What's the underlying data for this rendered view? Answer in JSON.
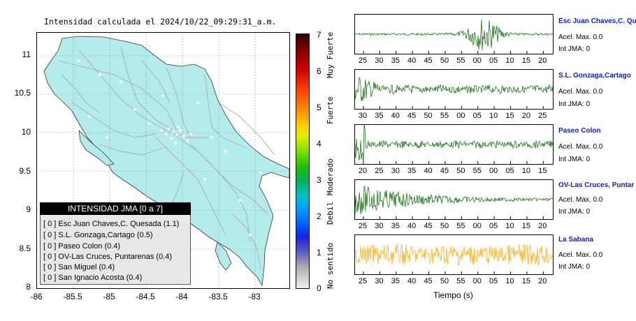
{
  "header": {
    "title": "Intensidad calculada el 2024/10/22_09:29:31_a.m."
  },
  "map": {
    "yticks": [
      "11",
      "10.5",
      "10",
      "9.5",
      "9",
      "8.5",
      "8"
    ],
    "xticks": [
      "-86",
      "-85.5",
      "-85",
      "-84.5",
      "-84",
      "-83.5",
      "-83"
    ],
    "land_color": "#b4ecec",
    "road_color": "#aaaaaa"
  },
  "legend": {
    "title": "INTENSIDAD JMA [0 a 7]",
    "items": [
      "[ 0 ]  Esc Juan Chaves,C. Quesada (1.1)",
      "[ 0 ]  S.L. Gonzaga,Cartago (0.5)",
      "[ 0 ]  Paseo Colon (0.4)",
      "[ 0 ]  OV-Las Cruces, Puntarenas (0.4)",
      "[ 0 ]  San Miguel (0.4)",
      "[ 0 ]  San Ignacio Acosta (0.4)"
    ]
  },
  "colorbar": {
    "ticks": [
      "7",
      "6",
      "5",
      "4",
      "3",
      "2",
      "1",
      "0"
    ],
    "labels": [
      "Muy Fuerte",
      "Fuerte",
      "Moderado",
      "Debil",
      "No sentido"
    ]
  },
  "waveforms": {
    "xlabel": "Tiempo (s)",
    "panels": [
      {
        "name": "Esc Juan Chaves,C. Qu",
        "acel": "Acel. Max. 0.0",
        "int": "Int JMA: 0",
        "color": "#006400",
        "ticks": [
          "25",
          "30",
          "35",
          "40",
          "45",
          "50",
          "55",
          "00",
          "05",
          "10",
          "15",
          "20"
        ]
      },
      {
        "name": "S.L. Gonzaga,Cartago",
        "acel": "Acel. Max. 0.0",
        "int": "Int JMA: 0",
        "color": "#006400",
        "ticks": [
          "30",
          "35",
          "40",
          "45",
          "50",
          "55",
          "00",
          "05",
          "10",
          "15",
          "20",
          "25"
        ]
      },
      {
        "name": "Paseo Colon",
        "acel": "Acel. Max. 0.0",
        "int": "Int JMA: 0",
        "color": "#006400",
        "ticks": [
          "20",
          "25",
          "30",
          "35",
          "40",
          "45",
          "50",
          "55",
          "00",
          "05",
          "10",
          "15"
        ]
      },
      {
        "name": "OV-Las Cruces, Puntar",
        "acel": "Acel. Max. 0.0",
        "int": "Int JMA: 0",
        "color": "#006400",
        "ticks": [
          "25",
          "30",
          "35",
          "40",
          "45",
          "50",
          "55",
          "00",
          "05",
          "10",
          "15",
          "20"
        ]
      },
      {
        "name": "La Sabana",
        "acel": "Acel. Max. 0.0",
        "int": "Int JMA: 0",
        "color": "#ffa500",
        "ticks": [
          "25",
          "30",
          "35",
          "40",
          "45",
          "50",
          "55",
          "00",
          "05",
          "10",
          "15",
          "20"
        ]
      }
    ]
  }
}
